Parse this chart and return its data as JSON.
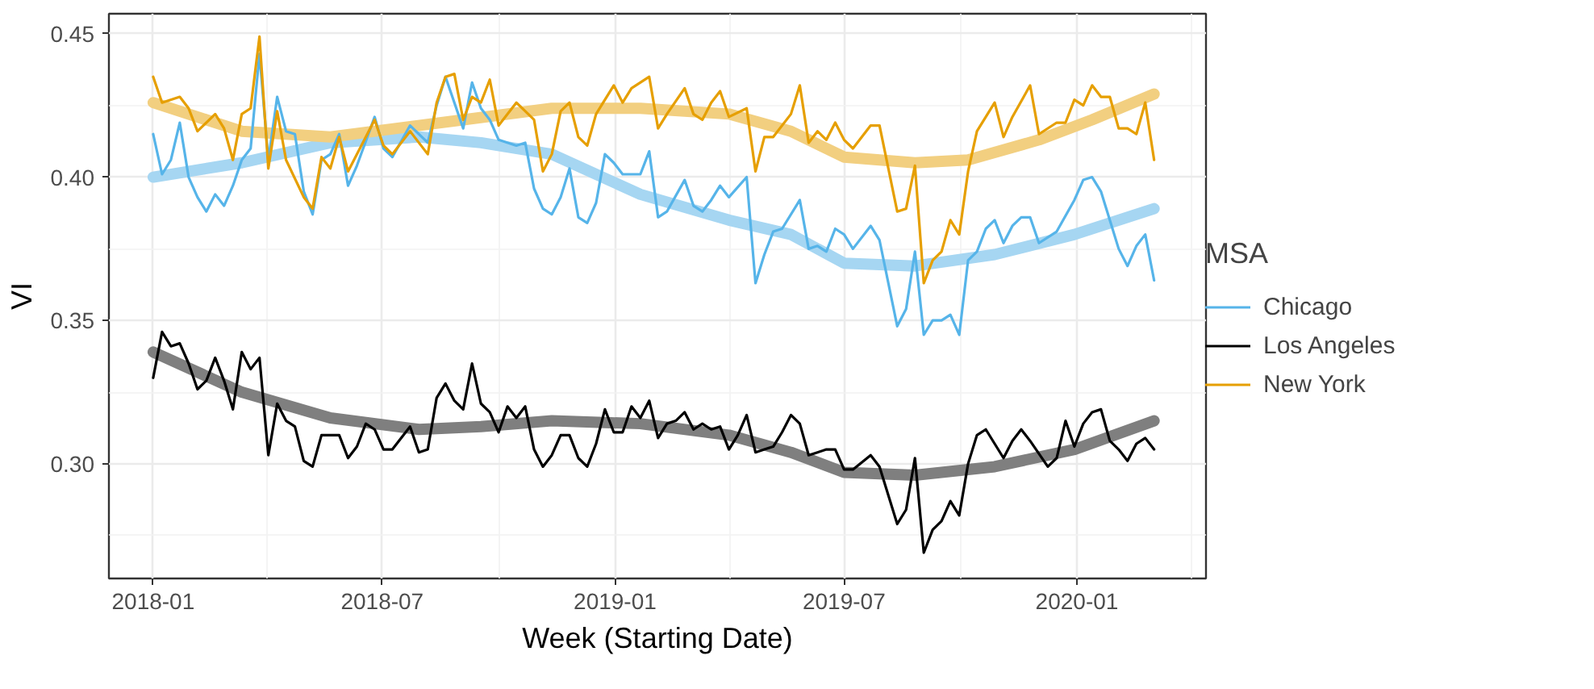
{
  "chart_data": {
    "type": "line",
    "xlabel": "Week (Starting Date)",
    "ylabel": "VI",
    "legend_title": "MSA",
    "legend": "right",
    "grid": true,
    "xlim": [
      "2017-11-27",
      "2020-04-12"
    ],
    "ylim": [
      0.26,
      0.457
    ],
    "xticks": [
      {
        "value": "2018-01-01",
        "label": "2018-01"
      },
      {
        "value": "2018-07-01",
        "label": "2018-07"
      },
      {
        "value": "2019-01-01",
        "label": "2019-01"
      },
      {
        "value": "2019-07-01",
        "label": "2019-07"
      },
      {
        "value": "2020-01-01",
        "label": "2020-01"
      }
    ],
    "yticks": [
      {
        "value": 0.3,
        "label": "0.30"
      },
      {
        "value": 0.35,
        "label": "0.35"
      },
      {
        "value": 0.4,
        "label": "0.40"
      },
      {
        "value": 0.45,
        "label": "0.45"
      }
    ],
    "series": [
      {
        "color": "#a6d6f2",
        "x": [
          "2018-01-01",
          "2018-03-12",
          "2018-05-21",
          "2018-07-30",
          "2018-09-17",
          "2018-11-12",
          "2019-01-21",
          "2019-04-01",
          "2019-05-20",
          "2019-07-01",
          "2019-08-26",
          "2019-10-28",
          "2019-12-30",
          "2020-03-02"
        ],
        "values": [
          0.4,
          0.405,
          0.412,
          0.414,
          0.412,
          0.408,
          0.394,
          0.385,
          0.38,
          0.37,
          0.369,
          0.373,
          0.38,
          0.389
        ]
      },
      {
        "color": "#7f7f7f",
        "x": [
          "2018-01-01",
          "2018-03-12",
          "2018-05-21",
          "2018-07-30",
          "2018-09-17",
          "2018-11-12",
          "2019-01-21",
          "2019-04-01",
          "2019-05-20",
          "2019-07-01",
          "2019-08-26",
          "2019-10-28",
          "2019-12-30",
          "2020-03-02"
        ],
        "values": [
          0.339,
          0.325,
          0.316,
          0.312,
          0.313,
          0.315,
          0.314,
          0.31,
          0.304,
          0.297,
          0.296,
          0.299,
          0.305,
          0.315
        ]
      },
      {
        "color": "#f2cf80",
        "x": [
          "2018-01-01",
          "2018-03-12",
          "2018-05-21",
          "2018-09-03",
          "2018-11-12",
          "2019-01-21",
          "2019-04-01",
          "2019-05-20",
          "2019-07-01",
          "2019-08-26",
          "2019-10-07",
          "2019-12-02",
          "2020-01-13",
          "2020-03-02"
        ],
        "values": [
          0.426,
          0.416,
          0.414,
          0.42,
          0.424,
          0.424,
          0.422,
          0.416,
          0.407,
          0.405,
          0.406,
          0.413,
          0.42,
          0.429
        ]
      },
      {
        "name": "Chicago",
        "color": "#56b4e9",
        "x": [
          "2018-01-01",
          "2018-01-08",
          "2018-01-15",
          "2018-01-22",
          "2018-01-29",
          "2018-02-05",
          "2018-02-12",
          "2018-02-19",
          "2018-02-26",
          "2018-03-05",
          "2018-03-12",
          "2018-03-19",
          "2018-03-26",
          "2018-04-02",
          "2018-04-09",
          "2018-04-16",
          "2018-04-23",
          "2018-04-30",
          "2018-05-07",
          "2018-05-14",
          "2018-05-21",
          "2018-05-28",
          "2018-06-04",
          "2018-06-11",
          "2018-06-25",
          "2018-07-02",
          "2018-07-09",
          "2018-07-23",
          "2018-08-06",
          "2018-08-13",
          "2018-08-20",
          "2018-09-03",
          "2018-09-10",
          "2018-09-17",
          "2018-09-24",
          "2018-10-01",
          "2018-10-15",
          "2018-10-22",
          "2018-10-29",
          "2018-11-05",
          "2018-11-12",
          "2018-11-19",
          "2018-11-26",
          "2018-12-03",
          "2018-12-10",
          "2018-12-17",
          "2018-12-24",
          "2018-12-31",
          "2019-01-07",
          "2019-01-21",
          "2019-01-28",
          "2019-02-04",
          "2019-02-11",
          "2019-02-25",
          "2019-03-04",
          "2019-03-11",
          "2019-03-18",
          "2019-03-25",
          "2019-04-01",
          "2019-04-15",
          "2019-04-22",
          "2019-04-29",
          "2019-05-06",
          "2019-05-13",
          "2019-05-27",
          "2019-06-03",
          "2019-06-10",
          "2019-06-17",
          "2019-06-24",
          "2019-07-01",
          "2019-07-08",
          "2019-07-22",
          "2019-07-29",
          "2019-08-12",
          "2019-08-19",
          "2019-08-26",
          "2019-09-02",
          "2019-09-09",
          "2019-09-16",
          "2019-09-23",
          "2019-09-30",
          "2019-10-07",
          "2019-10-14",
          "2019-10-21",
          "2019-10-28",
          "2019-11-04",
          "2019-11-11",
          "2019-11-18",
          "2019-11-25",
          "2019-12-02",
          "2019-12-16",
          "2019-12-30",
          "2020-01-06",
          "2020-01-13",
          "2020-01-20",
          "2020-01-27",
          "2020-02-03",
          "2020-02-10",
          "2020-02-17",
          "2020-02-24",
          "2020-03-02"
        ],
        "values": [
          0.415,
          0.401,
          0.406,
          0.419,
          0.4,
          0.393,
          0.388,
          0.394,
          0.39,
          0.397,
          0.406,
          0.41,
          0.443,
          0.406,
          0.428,
          0.416,
          0.415,
          0.395,
          0.387,
          0.406,
          0.408,
          0.415,
          0.397,
          0.404,
          0.421,
          0.41,
          0.407,
          0.418,
          0.412,
          0.425,
          0.435,
          0.417,
          0.433,
          0.424,
          0.42,
          0.413,
          0.411,
          0.412,
          0.396,
          0.389,
          0.387,
          0.393,
          0.403,
          0.386,
          0.384,
          0.391,
          0.408,
          0.405,
          0.401,
          0.401,
          0.409,
          0.386,
          0.388,
          0.399,
          0.39,
          0.388,
          0.392,
          0.397,
          0.393,
          0.4,
          0.363,
          0.373,
          0.381,
          0.382,
          0.392,
          0.375,
          0.376,
          0.374,
          0.382,
          0.38,
          0.375,
          0.383,
          0.378,
          0.348,
          0.354,
          0.374,
          0.345,
          0.35,
          0.35,
          0.352,
          0.345,
          0.371,
          0.374,
          0.382,
          0.385,
          0.377,
          0.383,
          0.386,
          0.386,
          0.377,
          0.381,
          0.392,
          0.399,
          0.4,
          0.395,
          0.385,
          0.375,
          0.369,
          0.376,
          0.38,
          0.364
        ]
      },
      {
        "name": "Los Angeles",
        "color": "#000000",
        "x": [
          "2018-01-01",
          "2018-01-08",
          "2018-01-15",
          "2018-01-22",
          "2018-01-29",
          "2018-02-05",
          "2018-02-12",
          "2018-02-19",
          "2018-02-26",
          "2018-03-05",
          "2018-03-12",
          "2018-03-19",
          "2018-03-26",
          "2018-04-02",
          "2018-04-09",
          "2018-04-16",
          "2018-04-23",
          "2018-04-30",
          "2018-05-07",
          "2018-05-14",
          "2018-05-21",
          "2018-05-28",
          "2018-06-04",
          "2018-06-11",
          "2018-06-18",
          "2018-06-25",
          "2018-07-02",
          "2018-07-09",
          "2018-07-23",
          "2018-07-30",
          "2018-08-06",
          "2018-08-13",
          "2018-08-20",
          "2018-08-27",
          "2018-09-03",
          "2018-09-10",
          "2018-09-17",
          "2018-09-24",
          "2018-10-01",
          "2018-10-08",
          "2018-10-15",
          "2018-10-22",
          "2018-10-29",
          "2018-11-05",
          "2018-11-12",
          "2018-11-19",
          "2018-11-26",
          "2018-12-03",
          "2018-12-10",
          "2018-12-17",
          "2018-12-24",
          "2018-12-31",
          "2019-01-07",
          "2019-01-14",
          "2019-01-21",
          "2019-01-28",
          "2019-02-04",
          "2019-02-11",
          "2019-02-18",
          "2019-02-25",
          "2019-03-04",
          "2019-03-11",
          "2019-03-18",
          "2019-03-25",
          "2019-04-01",
          "2019-04-08",
          "2019-04-15",
          "2019-04-22",
          "2019-04-29",
          "2019-05-06",
          "2019-05-13",
          "2019-05-20",
          "2019-05-27",
          "2019-06-03",
          "2019-06-10",
          "2019-06-17",
          "2019-06-24",
          "2019-07-01",
          "2019-07-08",
          "2019-07-22",
          "2019-07-29",
          "2019-08-12",
          "2019-08-19",
          "2019-08-26",
          "2019-09-02",
          "2019-09-09",
          "2019-09-16",
          "2019-09-23",
          "2019-09-30",
          "2019-10-07",
          "2019-10-14",
          "2019-10-21",
          "2019-11-04",
          "2019-11-11",
          "2019-11-18",
          "2019-11-25",
          "2019-12-09",
          "2019-12-16",
          "2019-12-23",
          "2019-12-30",
          "2020-01-06",
          "2020-01-13",
          "2020-01-20",
          "2020-01-27",
          "2020-02-03",
          "2020-02-10",
          "2020-02-17",
          "2020-02-24",
          "2020-03-02"
        ],
        "values": [
          0.33,
          0.346,
          0.341,
          0.342,
          0.335,
          0.326,
          0.329,
          0.337,
          0.329,
          0.319,
          0.339,
          0.333,
          0.337,
          0.303,
          0.321,
          0.315,
          0.313,
          0.301,
          0.299,
          0.31,
          0.31,
          0.31,
          0.302,
          0.306,
          0.314,
          0.312,
          0.305,
          0.305,
          0.313,
          0.304,
          0.305,
          0.323,
          0.328,
          0.322,
          0.319,
          0.335,
          0.321,
          0.318,
          0.311,
          0.32,
          0.316,
          0.32,
          0.305,
          0.299,
          0.303,
          0.31,
          0.31,
          0.302,
          0.299,
          0.307,
          0.319,
          0.311,
          0.311,
          0.32,
          0.316,
          0.322,
          0.309,
          0.314,
          0.315,
          0.318,
          0.312,
          0.314,
          0.312,
          0.313,
          0.305,
          0.31,
          0.317,
          0.304,
          0.305,
          0.306,
          0.311,
          0.317,
          0.314,
          0.303,
          0.304,
          0.305,
          0.305,
          0.298,
          0.298,
          0.303,
          0.299,
          0.279,
          0.284,
          0.302,
          0.269,
          0.277,
          0.28,
          0.287,
          0.282,
          0.3,
          0.31,
          0.312,
          0.302,
          0.308,
          0.312,
          0.308,
          0.299,
          0.302,
          0.315,
          0.306,
          0.314,
          0.318,
          0.319,
          0.308,
          0.305,
          0.301,
          0.307,
          0.309,
          0.305
        ]
      },
      {
        "name": "New York",
        "color": "#e69f00",
        "x": [
          "2018-01-01",
          "2018-01-08",
          "2018-01-22",
          "2018-01-29",
          "2018-02-05",
          "2018-02-19",
          "2018-02-26",
          "2018-03-05",
          "2018-03-12",
          "2018-03-19",
          "2018-03-26",
          "2018-04-02",
          "2018-04-09",
          "2018-04-16",
          "2018-04-30",
          "2018-05-07",
          "2018-05-14",
          "2018-05-21",
          "2018-05-28",
          "2018-06-04",
          "2018-06-25",
          "2018-07-02",
          "2018-07-09",
          "2018-07-23",
          "2018-08-06",
          "2018-08-13",
          "2018-08-20",
          "2018-08-27",
          "2018-09-03",
          "2018-09-10",
          "2018-09-17",
          "2018-09-24",
          "2018-10-01",
          "2018-10-15",
          "2018-10-29",
          "2018-11-05",
          "2018-11-12",
          "2018-11-19",
          "2018-11-26",
          "2018-12-03",
          "2018-12-10",
          "2018-12-17",
          "2018-12-31",
          "2019-01-07",
          "2019-01-14",
          "2019-01-28",
          "2019-02-04",
          "2019-02-11",
          "2019-02-25",
          "2019-03-04",
          "2019-03-11",
          "2019-03-18",
          "2019-03-25",
          "2019-04-01",
          "2019-04-15",
          "2019-04-22",
          "2019-04-29",
          "2019-05-06",
          "2019-05-20",
          "2019-05-27",
          "2019-06-03",
          "2019-06-10",
          "2019-06-17",
          "2019-06-24",
          "2019-07-01",
          "2019-07-08",
          "2019-07-22",
          "2019-07-29",
          "2019-08-12",
          "2019-08-19",
          "2019-08-26",
          "2019-09-02",
          "2019-09-09",
          "2019-09-16",
          "2019-09-23",
          "2019-09-30",
          "2019-10-07",
          "2019-10-14",
          "2019-10-28",
          "2019-11-04",
          "2019-11-11",
          "2019-11-25",
          "2019-12-02",
          "2019-12-16",
          "2019-12-23",
          "2019-12-30",
          "2020-01-06",
          "2020-01-13",
          "2020-01-20",
          "2020-01-27",
          "2020-02-03",
          "2020-02-10",
          "2020-02-17",
          "2020-02-24",
          "2020-03-02"
        ],
        "values": [
          0.435,
          0.426,
          0.428,
          0.424,
          0.416,
          0.422,
          0.417,
          0.406,
          0.422,
          0.424,
          0.449,
          0.403,
          0.423,
          0.406,
          0.393,
          0.389,
          0.407,
          0.403,
          0.414,
          0.402,
          0.42,
          0.411,
          0.408,
          0.416,
          0.408,
          0.426,
          0.435,
          0.436,
          0.42,
          0.428,
          0.426,
          0.434,
          0.418,
          0.426,
          0.42,
          0.402,
          0.408,
          0.423,
          0.426,
          0.414,
          0.411,
          0.422,
          0.432,
          0.426,
          0.431,
          0.435,
          0.417,
          0.422,
          0.431,
          0.422,
          0.42,
          0.426,
          0.43,
          0.421,
          0.424,
          0.402,
          0.414,
          0.414,
          0.422,
          0.432,
          0.412,
          0.416,
          0.413,
          0.419,
          0.413,
          0.41,
          0.418,
          0.418,
          0.388,
          0.389,
          0.404,
          0.363,
          0.371,
          0.374,
          0.385,
          0.38,
          0.402,
          0.416,
          0.426,
          0.414,
          0.421,
          0.432,
          0.415,
          0.419,
          0.419,
          0.427,
          0.425,
          0.432,
          0.428,
          0.428,
          0.417,
          0.417,
          0.415,
          0.426,
          0.406
        ]
      }
    ]
  }
}
